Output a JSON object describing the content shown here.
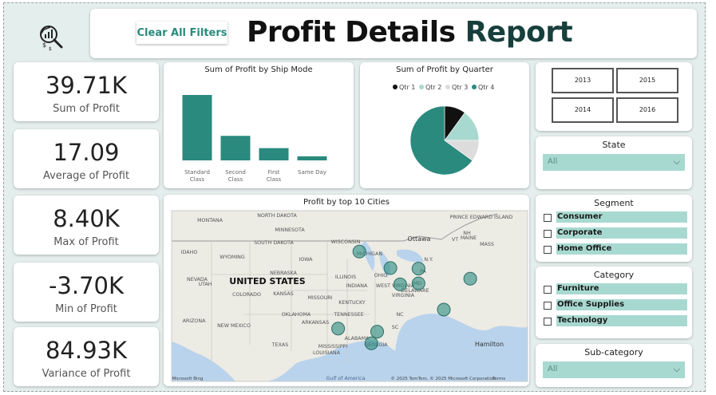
{
  "header": {
    "clear_filters_label": "Clear All Filters",
    "title_part1": "Profit Details",
    "title_part2": "Report"
  },
  "kpis": [
    {
      "value": "39.71K",
      "label": "Sum of Profit"
    },
    {
      "value": "17.09",
      "label": "Average of Profit"
    },
    {
      "value": "8.40K",
      "label": "Max of Profit"
    },
    {
      "value": "-3.70K",
      "label": "Min of Profit"
    },
    {
      "value": "84.93K",
      "label": "Variance of Profit"
    }
  ],
  "years": [
    "2013",
    "2015",
    "2014",
    "2016"
  ],
  "state": {
    "title": "State",
    "selected": "All"
  },
  "segment": {
    "title": "Segment",
    "options": [
      "Consumer",
      "Corporate",
      "Home Office"
    ]
  },
  "category": {
    "title": "Category",
    "options": [
      "Furniture",
      "Office Supplies",
      "Technology"
    ]
  },
  "subcategory": {
    "title": "Sub-category",
    "selected": "All"
  },
  "map": {
    "title": "Profit by top 10 Cities",
    "country_label": "UNITED STATES",
    "attribution": "© 2025 TomTom, © 2025 Microsoft Corporation",
    "terms": "Terms",
    "bing": "Microsoft Bing",
    "labels": [
      "MONTANA",
      "NORTH DAKOTA",
      "MINNESOTA",
      "SOUTH DAKOTA",
      "WISCONSIN",
      "MICHIGAN",
      "Ottawa",
      "MAINE",
      "PRINCE EDWARD ISLAND",
      "IDAHO",
      "WYOMING",
      "IOWA",
      "N.Y.",
      "VT",
      "NH",
      "MASS",
      "NEBRASKA",
      "ILLINOIS",
      "INDIANA",
      "OHIO",
      "PA",
      "NEVADA",
      "UTAH",
      "COLORADO",
      "KANSAS",
      "MISSOURI",
      "WEST VIRGINIA",
      "VIRGINIA",
      "DELAWARE",
      "MD",
      "KENTUCKY",
      "TENNESSEE",
      "OKLAHOMA",
      "NC",
      "ARIZONA",
      "NEW MEXICO",
      "ARKANSAS",
      "SC",
      "MISSISSIPPI",
      "ALABAMA",
      "GEORGIA",
      "TEXAS",
      "LOUISIANA",
      "Gulf of America",
      "Hamilton"
    ]
  },
  "chart_data": [
    {
      "type": "bar",
      "title": "Sum of Profit by Ship Mode",
      "categories": [
        "Standard Class",
        "Second Class",
        "First Class",
        "Same Day"
      ],
      "values": [
        24000,
        9000,
        4500,
        1500
      ],
      "color": "#2a8a7e"
    },
    {
      "type": "pie",
      "title": "Sum of Profit by Quarter",
      "legend_position": "top",
      "series": [
        {
          "name": "Qtr 1",
          "value": 10,
          "color": "#111111"
        },
        {
          "name": "Qtr 2",
          "value": 15,
          "color": "#a8d9d1"
        },
        {
          "name": "Qtr 3",
          "value": 10,
          "color": "#dcdcdc"
        },
        {
          "name": "Qtr 4",
          "value": 65,
          "color": "#2a8a7e"
        }
      ]
    },
    {
      "type": "scatter",
      "title": "Profit by top 10 Cities",
      "points": [
        {
          "lat": 45.0,
          "lon": -93.3
        },
        {
          "lat": 42.4,
          "lon": -87.9
        },
        {
          "lat": 42.3,
          "lon": -83.0
        },
        {
          "lat": 39.8,
          "lon": -86.2
        },
        {
          "lat": 39.96,
          "lon": -83.0
        },
        {
          "lat": 40.7,
          "lon": -74.0
        },
        {
          "lat": 35.8,
          "lon": -78.6
        },
        {
          "lat": 32.8,
          "lon": -97.0
        },
        {
          "lat": 32.3,
          "lon": -90.2
        },
        {
          "lat": 30.45,
          "lon": -91.2
        }
      ],
      "color": "#2a8a7e"
    }
  ],
  "colors": {
    "accent": "#2a8a7e",
    "light_accent": "#a8d9d1",
    "background": "#e4eeec"
  }
}
